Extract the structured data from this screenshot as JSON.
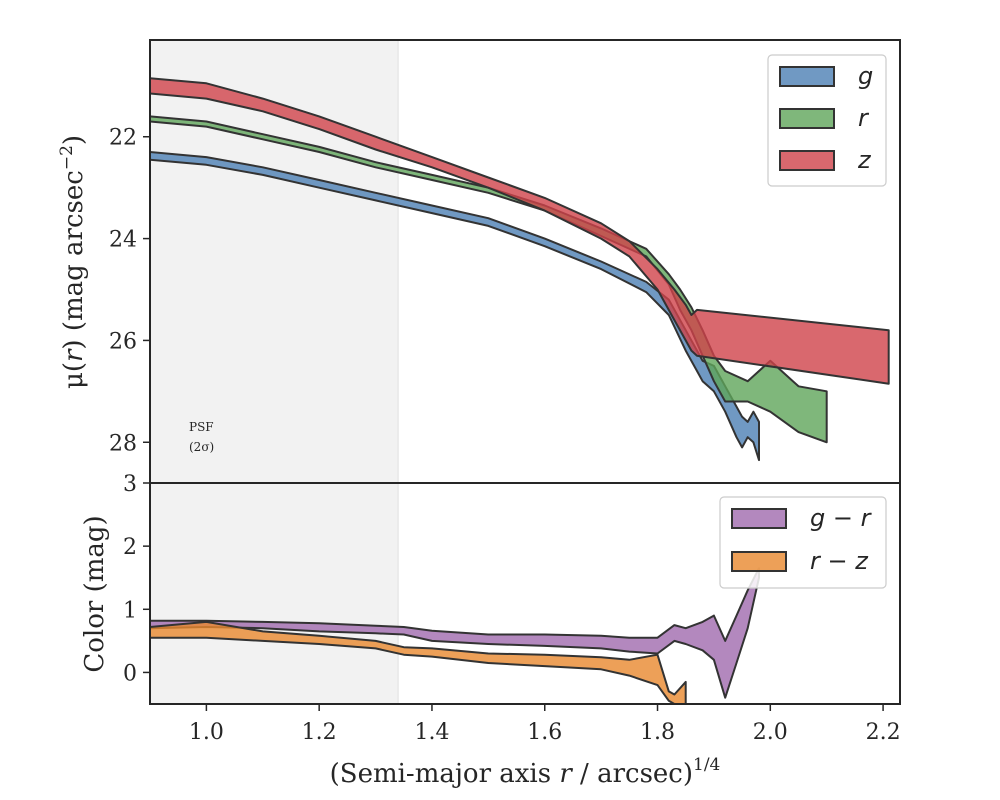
{
  "chart_data": [
    {
      "type": "area",
      "panel": "surface-brightness",
      "ylabel_parts": [
        "μ(",
        "r",
        ") (mag arcsec",
        "−2",
        ")"
      ],
      "xlim": [
        0.9,
        2.23
      ],
      "ylim": [
        20.1,
        28.8
      ],
      "y_inverted": true,
      "yticks": [
        22,
        24,
        26,
        28
      ],
      "psf_region": {
        "x_start": 0.9,
        "x_end": 1.34
      },
      "psf_note": [
        "PSF",
        "(2σ)"
      ],
      "legend": {
        "placement": "top-right",
        "entries": [
          "g",
          "r",
          "z"
        ]
      },
      "series": [
        {
          "name": "g",
          "color": "#4C7FB4",
          "x": [
            0.9,
            1.0,
            1.1,
            1.2,
            1.3,
            1.4,
            1.5,
            1.6,
            1.7,
            1.78,
            1.82,
            1.85,
            1.87,
            1.88,
            1.9,
            1.92,
            1.94,
            1.95,
            1.96,
            1.97,
            1.98
          ],
          "lower": [
            22.3,
            22.4,
            22.6,
            22.85,
            23.1,
            23.35,
            23.6,
            24.0,
            24.45,
            24.85,
            25.2,
            25.8,
            26.2,
            26.4,
            26.5,
            26.9,
            27.3,
            27.5,
            27.6,
            27.4,
            27.6
          ],
          "upper": [
            22.45,
            22.55,
            22.75,
            23.0,
            23.25,
            23.5,
            23.75,
            24.15,
            24.6,
            25.05,
            25.5,
            26.2,
            26.6,
            26.8,
            27.0,
            27.4,
            27.9,
            28.1,
            27.9,
            28.0,
            28.35
          ]
        },
        {
          "name": "r",
          "color": "#5FA55A",
          "x": [
            0.9,
            1.0,
            1.1,
            1.2,
            1.3,
            1.4,
            1.5,
            1.6,
            1.7,
            1.78,
            1.82,
            1.84,
            1.86,
            1.88,
            1.9,
            1.92,
            1.96,
            2.0,
            2.05,
            2.1
          ],
          "lower": [
            21.6,
            21.7,
            21.95,
            22.2,
            22.5,
            22.75,
            23.0,
            23.35,
            23.8,
            24.2,
            24.7,
            25.0,
            25.35,
            25.8,
            26.3,
            26.6,
            26.8,
            26.4,
            26.9,
            27.0
          ],
          "upper": [
            21.7,
            21.8,
            22.05,
            22.3,
            22.6,
            22.85,
            23.1,
            23.45,
            23.95,
            24.35,
            24.9,
            25.4,
            25.8,
            26.3,
            26.8,
            27.2,
            27.2,
            27.4,
            27.8,
            28.0
          ]
        },
        {
          "name": "z",
          "color": "#D0424A",
          "x": [
            0.9,
            1.0,
            1.1,
            1.2,
            1.3,
            1.4,
            1.5,
            1.6,
            1.7,
            1.75,
            1.8,
            1.83,
            1.85,
            1.86,
            1.87,
            2.21
          ],
          "lower": [
            20.85,
            20.95,
            21.25,
            21.6,
            22.0,
            22.4,
            22.8,
            23.2,
            23.7,
            24.05,
            24.6,
            25.0,
            25.3,
            25.5,
            25.4,
            25.8
          ],
          "upper": [
            21.15,
            21.25,
            21.5,
            21.85,
            22.25,
            22.6,
            23.0,
            23.45,
            24.0,
            24.35,
            25.0,
            25.6,
            26.0,
            26.2,
            26.3,
            26.85
          ]
        }
      ]
    },
    {
      "type": "area",
      "panel": "color-profile",
      "xlabel_parts": [
        "(Semi-major axis ",
        "r",
        " / arcsec)",
        "1/4"
      ],
      "ylabel": "Color (mag)",
      "xlim": [
        0.9,
        2.23
      ],
      "ylim": [
        -0.5,
        3.0
      ],
      "xticks": [
        1.0,
        1.2,
        1.4,
        1.6,
        1.8,
        2.0,
        2.2
      ],
      "yticks": [
        0,
        1,
        2,
        3
      ],
      "psf_region": {
        "x_start": 0.9,
        "x_end": 1.34
      },
      "legend": {
        "placement": "top-right",
        "entries": [
          "g − r",
          "r − z"
        ]
      },
      "series": [
        {
          "name": "g − r",
          "color": "#A06AAE",
          "x": [
            0.9,
            1.0,
            1.1,
            1.2,
            1.3,
            1.35,
            1.4,
            1.5,
            1.6,
            1.7,
            1.75,
            1.8,
            1.83,
            1.85,
            1.88,
            1.9,
            1.92,
            1.94,
            1.96,
            1.98
          ],
          "lower": [
            0.7,
            0.72,
            0.7,
            0.65,
            0.62,
            0.6,
            0.5,
            0.45,
            0.42,
            0.38,
            0.33,
            0.3,
            0.5,
            0.45,
            0.35,
            0.2,
            -0.4,
            0.15,
            0.7,
            1.5
          ],
          "upper": [
            0.82,
            0.82,
            0.8,
            0.78,
            0.74,
            0.72,
            0.66,
            0.6,
            0.6,
            0.58,
            0.55,
            0.55,
            0.75,
            0.7,
            0.8,
            0.9,
            0.5,
            0.9,
            1.3,
            1.65
          ]
        },
        {
          "name": "r − z",
          "color": "#E8882E",
          "x": [
            0.9,
            1.0,
            1.1,
            1.2,
            1.3,
            1.35,
            1.4,
            1.5,
            1.6,
            1.7,
            1.75,
            1.8,
            1.82,
            1.83,
            1.85
          ],
          "lower": [
            0.55,
            0.55,
            0.5,
            0.45,
            0.38,
            0.28,
            0.25,
            0.15,
            0.1,
            0.05,
            -0.05,
            -0.2,
            -0.45,
            -0.5,
            -0.5
          ],
          "upper": [
            0.72,
            0.8,
            0.65,
            0.58,
            0.5,
            0.4,
            0.38,
            0.3,
            0.28,
            0.24,
            0.2,
            0.28,
            -0.3,
            -0.35,
            -0.15
          ]
        }
      ]
    }
  ]
}
